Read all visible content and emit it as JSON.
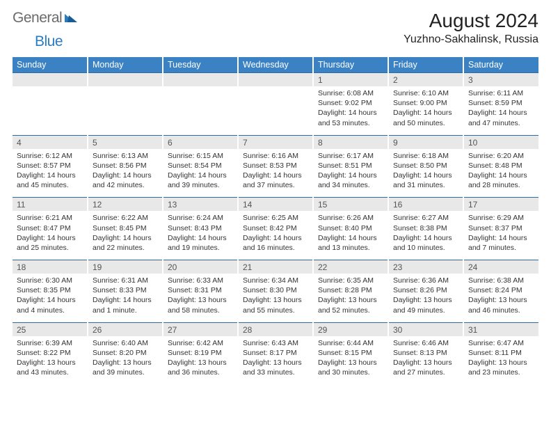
{
  "logo": {
    "general": "General",
    "blue": "Blue"
  },
  "title": "August 2024",
  "location": "Yuzhno-Sakhalinsk, Russia",
  "colors": {
    "header_bg": "#3b82c4",
    "header_text": "#ffffff",
    "daynum_bg": "#e8e8e8",
    "daynum_border": "#2b6aa3",
    "logo_gray": "#6b6b6b",
    "logo_blue": "#2b7bbf"
  },
  "weekdays": [
    "Sunday",
    "Monday",
    "Tuesday",
    "Wednesday",
    "Thursday",
    "Friday",
    "Saturday"
  ],
  "weeks": [
    [
      null,
      null,
      null,
      null,
      {
        "n": "1",
        "sr": "6:08 AM",
        "ss": "9:02 PM",
        "dl": "14 hours and 53 minutes."
      },
      {
        "n": "2",
        "sr": "6:10 AM",
        "ss": "9:00 PM",
        "dl": "14 hours and 50 minutes."
      },
      {
        "n": "3",
        "sr": "6:11 AM",
        "ss": "8:59 PM",
        "dl": "14 hours and 47 minutes."
      }
    ],
    [
      {
        "n": "4",
        "sr": "6:12 AM",
        "ss": "8:57 PM",
        "dl": "14 hours and 45 minutes."
      },
      {
        "n": "5",
        "sr": "6:13 AM",
        "ss": "8:56 PM",
        "dl": "14 hours and 42 minutes."
      },
      {
        "n": "6",
        "sr": "6:15 AM",
        "ss": "8:54 PM",
        "dl": "14 hours and 39 minutes."
      },
      {
        "n": "7",
        "sr": "6:16 AM",
        "ss": "8:53 PM",
        "dl": "14 hours and 37 minutes."
      },
      {
        "n": "8",
        "sr": "6:17 AM",
        "ss": "8:51 PM",
        "dl": "14 hours and 34 minutes."
      },
      {
        "n": "9",
        "sr": "6:18 AM",
        "ss": "8:50 PM",
        "dl": "14 hours and 31 minutes."
      },
      {
        "n": "10",
        "sr": "6:20 AM",
        "ss": "8:48 PM",
        "dl": "14 hours and 28 minutes."
      }
    ],
    [
      {
        "n": "11",
        "sr": "6:21 AM",
        "ss": "8:47 PM",
        "dl": "14 hours and 25 minutes."
      },
      {
        "n": "12",
        "sr": "6:22 AM",
        "ss": "8:45 PM",
        "dl": "14 hours and 22 minutes."
      },
      {
        "n": "13",
        "sr": "6:24 AM",
        "ss": "8:43 PM",
        "dl": "14 hours and 19 minutes."
      },
      {
        "n": "14",
        "sr": "6:25 AM",
        "ss": "8:42 PM",
        "dl": "14 hours and 16 minutes."
      },
      {
        "n": "15",
        "sr": "6:26 AM",
        "ss": "8:40 PM",
        "dl": "14 hours and 13 minutes."
      },
      {
        "n": "16",
        "sr": "6:27 AM",
        "ss": "8:38 PM",
        "dl": "14 hours and 10 minutes."
      },
      {
        "n": "17",
        "sr": "6:29 AM",
        "ss": "8:37 PM",
        "dl": "14 hours and 7 minutes."
      }
    ],
    [
      {
        "n": "18",
        "sr": "6:30 AM",
        "ss": "8:35 PM",
        "dl": "14 hours and 4 minutes."
      },
      {
        "n": "19",
        "sr": "6:31 AM",
        "ss": "8:33 PM",
        "dl": "14 hours and 1 minute."
      },
      {
        "n": "20",
        "sr": "6:33 AM",
        "ss": "8:31 PM",
        "dl": "13 hours and 58 minutes."
      },
      {
        "n": "21",
        "sr": "6:34 AM",
        "ss": "8:30 PM",
        "dl": "13 hours and 55 minutes."
      },
      {
        "n": "22",
        "sr": "6:35 AM",
        "ss": "8:28 PM",
        "dl": "13 hours and 52 minutes."
      },
      {
        "n": "23",
        "sr": "6:36 AM",
        "ss": "8:26 PM",
        "dl": "13 hours and 49 minutes."
      },
      {
        "n": "24",
        "sr": "6:38 AM",
        "ss": "8:24 PM",
        "dl": "13 hours and 46 minutes."
      }
    ],
    [
      {
        "n": "25",
        "sr": "6:39 AM",
        "ss": "8:22 PM",
        "dl": "13 hours and 43 minutes."
      },
      {
        "n": "26",
        "sr": "6:40 AM",
        "ss": "8:20 PM",
        "dl": "13 hours and 39 minutes."
      },
      {
        "n": "27",
        "sr": "6:42 AM",
        "ss": "8:19 PM",
        "dl": "13 hours and 36 minutes."
      },
      {
        "n": "28",
        "sr": "6:43 AM",
        "ss": "8:17 PM",
        "dl": "13 hours and 33 minutes."
      },
      {
        "n": "29",
        "sr": "6:44 AM",
        "ss": "8:15 PM",
        "dl": "13 hours and 30 minutes."
      },
      {
        "n": "30",
        "sr": "6:46 AM",
        "ss": "8:13 PM",
        "dl": "13 hours and 27 minutes."
      },
      {
        "n": "31",
        "sr": "6:47 AM",
        "ss": "8:11 PM",
        "dl": "13 hours and 23 minutes."
      }
    ]
  ],
  "labels": {
    "sunrise": "Sunrise: ",
    "sunset": "Sunset: ",
    "daylight": "Daylight: "
  }
}
